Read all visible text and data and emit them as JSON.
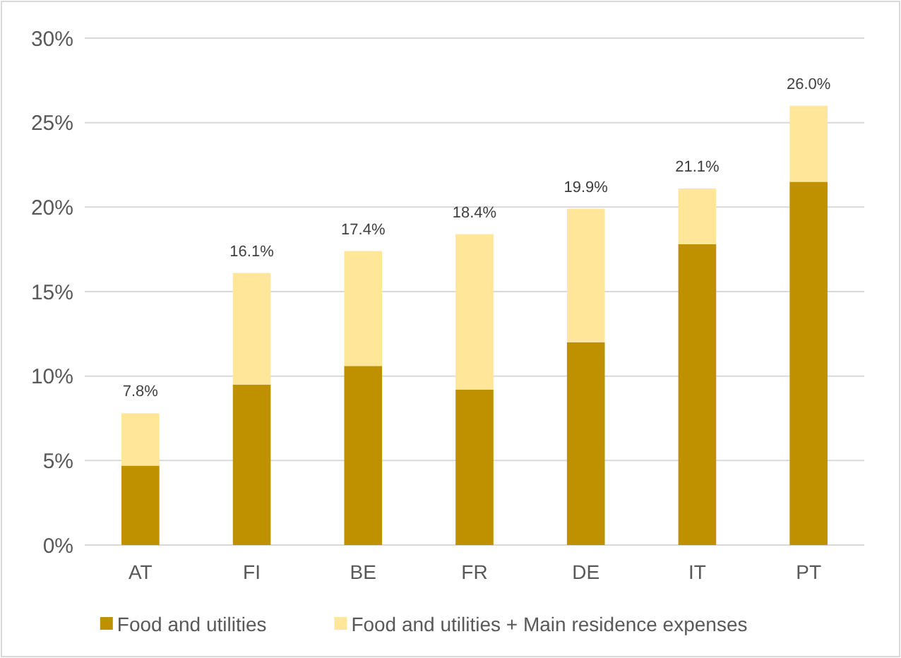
{
  "chart_data": {
    "type": "bar",
    "stacked": true,
    "categories": [
      "AT",
      "FI",
      "BE",
      "FR",
      "DE",
      "IT",
      "PT"
    ],
    "series": [
      {
        "name": "Food and utilities",
        "color": "#bf9000",
        "values": [
          4.7,
          9.5,
          10.6,
          9.2,
          12.0,
          17.8,
          21.5
        ]
      },
      {
        "name": "Food and utilities + Main residence expenses",
        "color": "#ffe699",
        "values": [
          3.1,
          6.6,
          6.8,
          9.2,
          7.9,
          3.3,
          4.5
        ]
      }
    ],
    "totals": [
      "7.8%",
      "16.1%",
      "17.4%",
      "18.4%",
      "19.9%",
      "21.1%",
      "26.0%"
    ],
    "ylim": [
      0,
      30
    ],
    "yticks": [
      {
        "value": 0,
        "label": "0%"
      },
      {
        "value": 5,
        "label": "5%"
      },
      {
        "value": 10,
        "label": "10%"
      },
      {
        "value": 15,
        "label": "15%"
      },
      {
        "value": 20,
        "label": "20%"
      },
      {
        "value": 25,
        "label": "25%"
      },
      {
        "value": 30,
        "label": "30%"
      }
    ],
    "grid": "y",
    "legend": "bottom"
  }
}
